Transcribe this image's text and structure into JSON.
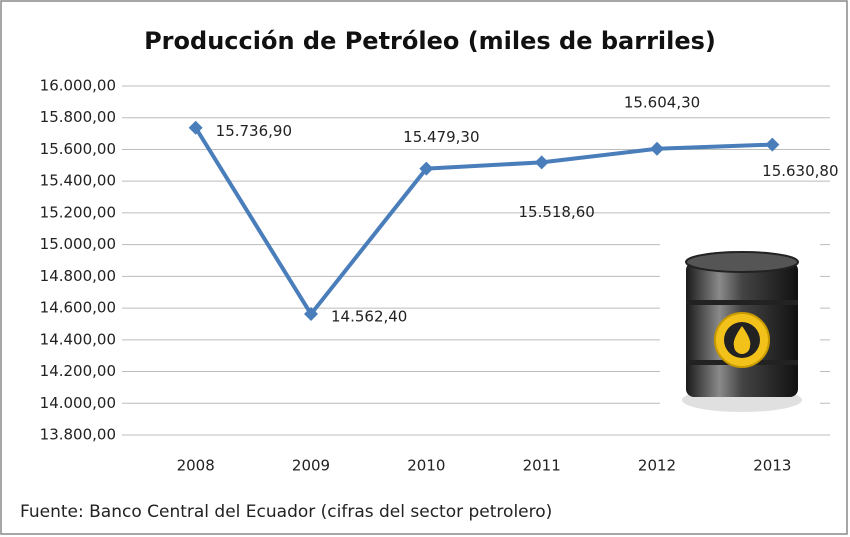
{
  "chart_data": {
    "type": "line",
    "title": "Producción de Petróleo (miles de barriles)",
    "footer": "Fuente: Banco Central del Ecuador (cifras del sector petrolero)",
    "categories": [
      "2008",
      "2009",
      "2010",
      "2011",
      "2012",
      "2013"
    ],
    "values": [
      15736.9,
      14562.4,
      15479.3,
      15518.6,
      15604.3,
      15630.8
    ],
    "value_labels": [
      "15.736,90",
      "14.562,40",
      "15.479,30",
      "15.518,60",
      "15.604,30",
      "15.630,80"
    ],
    "color": "#4a7ebb",
    "ylim": [
      13800,
      16000
    ],
    "yticks": [
      {
        "value": 13800,
        "label": "13.800,00"
      },
      {
        "value": 14000,
        "label": "14.000,00"
      },
      {
        "value": 14200,
        "label": "14.200,00"
      },
      {
        "value": 14400,
        "label": "14.400,00"
      },
      {
        "value": 14600,
        "label": "14.600,00"
      },
      {
        "value": 14800,
        "label": "14.800,00"
      },
      {
        "value": 15000,
        "label": "15.000,00"
      },
      {
        "value": 15200,
        "label": "15.200,00"
      },
      {
        "value": 15400,
        "label": "15.400,00"
      },
      {
        "value": 15600,
        "label": "15.600,00"
      },
      {
        "value": 15800,
        "label": "15.800,00"
      },
      {
        "value": 16000,
        "label": "16.000,00"
      }
    ],
    "grid": true
  }
}
